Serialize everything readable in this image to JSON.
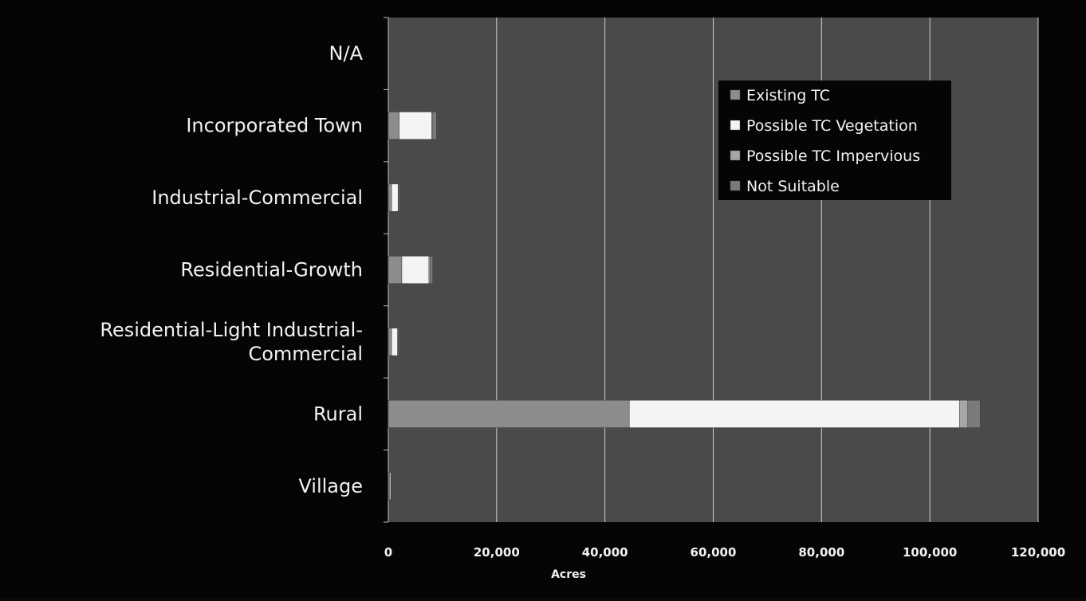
{
  "chart_data": {
    "type": "bar",
    "orientation": "horizontal",
    "stacked": true,
    "categories": [
      "N/A",
      "Incorporated Town",
      "Industrial-Commercial",
      "Residential-Growth",
      "Residential-Light Industrial-Commercial",
      "Rural",
      "Village"
    ],
    "category_lines": [
      [
        "N/A"
      ],
      [
        "Incorporated Town"
      ],
      [
        "Industrial-Commercial"
      ],
      [
        "Residential-Growth"
      ],
      [
        "Residential-Light Industrial-",
        "Commercial"
      ],
      [
        "Rural"
      ],
      [
        "Village"
      ]
    ],
    "series": [
      {
        "name": "Existing TC",
        "color": "#8c8c8c",
        "values": [
          0,
          2000,
          600,
          2500,
          600,
          44500,
          300
        ]
      },
      {
        "name": "Possible TC Vegetation",
        "color": "#f4f4f4",
        "values": [
          0,
          6000,
          1200,
          5000,
          1100,
          61000,
          200
        ]
      },
      {
        "name": "Possible TC Impervious",
        "color": "#a6a6a6",
        "values": [
          0,
          200,
          100,
          200,
          100,
          1500,
          50
        ]
      },
      {
        "name": "Not Suitable",
        "color": "#7a7a7a",
        "values": [
          0,
          700,
          200,
          500,
          200,
          2300,
          100
        ]
      }
    ],
    "xlabel": "Acres",
    "ylabel": "",
    "xlim": [
      0,
      120000
    ],
    "xticks": [
      0,
      20000,
      40000,
      60000,
      80000,
      100000,
      120000
    ],
    "xtick_labels": [
      "0",
      "20,000",
      "40,000",
      "60,000",
      "80,000",
      "100,000",
      "120,000"
    ],
    "grid": true,
    "legend_position": "top-right",
    "plot_background": "#4a4a4a",
    "gridline_color": "#d0d0d0"
  }
}
